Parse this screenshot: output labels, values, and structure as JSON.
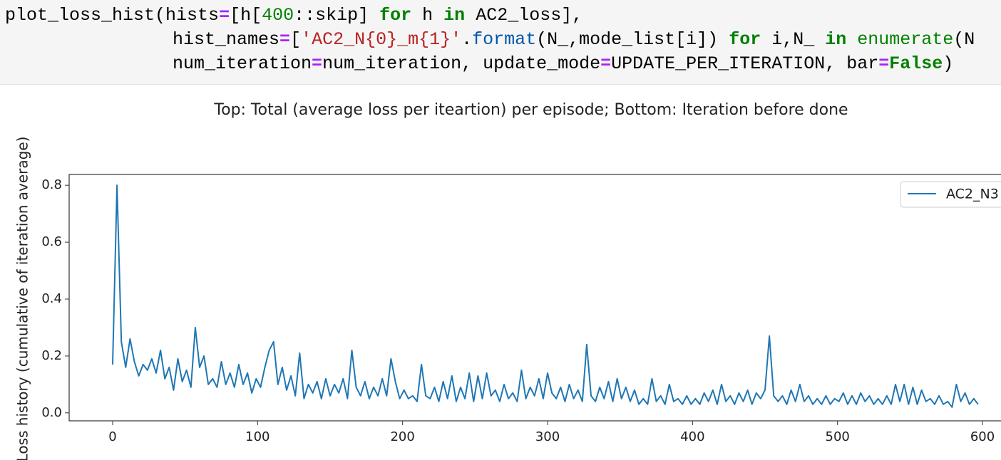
{
  "code": {
    "lines": [
      {
        "tokens": [
          {
            "text": "plot_loss_hist(hists",
            "color": "#000000"
          },
          {
            "text": "=",
            "color": "#aa22ff",
            "bold": true
          },
          {
            "text": "[h[",
            "color": "#000000"
          },
          {
            "text": "400",
            "color": "#008000"
          },
          {
            "text": "::skip] ",
            "color": "#000000"
          },
          {
            "text": "for",
            "color": "#008000",
            "bold": true
          },
          {
            "text": " h ",
            "color": "#000000"
          },
          {
            "text": "in",
            "color": "#008000",
            "bold": true
          },
          {
            "text": " AC2_loss],",
            "color": "#000000"
          }
        ]
      },
      {
        "tokens": [
          {
            "text": "hist_names",
            "color": "#000000"
          },
          {
            "text": "=",
            "color": "#aa22ff",
            "bold": true
          },
          {
            "text": "[",
            "color": "#000000"
          },
          {
            "text": "'AC2_N{0}_m{1}'",
            "color": "#ba2121"
          },
          {
            "text": ".",
            "color": "#000000"
          },
          {
            "text": "format",
            "color": "#0055aa"
          },
          {
            "text": "(N_,mode_list[i]) ",
            "color": "#000000"
          },
          {
            "text": "for",
            "color": "#008000",
            "bold": true
          },
          {
            "text": " i,N_ ",
            "color": "#000000"
          },
          {
            "text": "in",
            "color": "#008000",
            "bold": true
          },
          {
            "text": " ",
            "color": "#000000"
          },
          {
            "text": "enumerate",
            "color": "#008000"
          },
          {
            "text": "(N",
            "color": "#000000"
          }
        ]
      },
      {
        "tokens": [
          {
            "text": "num_iteration",
            "color": "#000000"
          },
          {
            "text": "=",
            "color": "#aa22ff",
            "bold": true
          },
          {
            "text": "num_iteration, update_mode",
            "color": "#000000"
          },
          {
            "text": "=",
            "color": "#aa22ff",
            "bold": true
          },
          {
            "text": "UPDATE_PER_ITERATION, bar",
            "color": "#000000"
          },
          {
            "text": "=",
            "color": "#aa22ff",
            "bold": true
          },
          {
            "text": "False",
            "color": "#008000",
            "bold": true
          },
          {
            "text": ")",
            "color": "#000000"
          }
        ]
      }
    ]
  },
  "chart_data": {
    "type": "line",
    "title": "Top: Total (average loss per iteartion) per episode; Bottom: Iteration before done",
    "y_label": "Loss history (cumulative of iteration average)",
    "xlim": [
      -30,
      629
    ],
    "ylim": [
      -0.028,
      0.838
    ],
    "xticks": [
      0,
      100,
      200,
      300,
      400,
      500,
      600
    ],
    "yticks": [
      {
        "value": 0,
        "label": "0.0"
      },
      0.2,
      0.4,
      0.6,
      0.8
    ],
    "legend": "upper right",
    "x": [
      0,
      3,
      6,
      9,
      12,
      15,
      18,
      21,
      24,
      27,
      30,
      33,
      36,
      39,
      42,
      45,
      48,
      51,
      54,
      57,
      60,
      63,
      66,
      69,
      72,
      75,
      78,
      81,
      84,
      87,
      90,
      93,
      96,
      99,
      102,
      105,
      108,
      111,
      114,
      117,
      120,
      123,
      126,
      129,
      132,
      135,
      138,
      141,
      144,
      147,
      150,
      153,
      156,
      159,
      162,
      165,
      168,
      171,
      174,
      177,
      180,
      183,
      186,
      189,
      192,
      195,
      198,
      201,
      204,
      207,
      210,
      213,
      216,
      219,
      222,
      225,
      228,
      231,
      234,
      237,
      240,
      243,
      246,
      249,
      252,
      255,
      258,
      261,
      264,
      267,
      270,
      273,
      276,
      279,
      282,
      285,
      288,
      291,
      294,
      297,
      300,
      303,
      306,
      309,
      312,
      315,
      318,
      321,
      324,
      327,
      330,
      333,
      336,
      339,
      342,
      345,
      348,
      351,
      354,
      357,
      360,
      363,
      366,
      369,
      372,
      375,
      378,
      381,
      384,
      387,
      390,
      393,
      396,
      399,
      402,
      405,
      408,
      411,
      414,
      417,
      420,
      423,
      426,
      429,
      432,
      435,
      438,
      441,
      444,
      447,
      450,
      453,
      456,
      459,
      462,
      465,
      468,
      471,
      474,
      477,
      480,
      483,
      486,
      489,
      492,
      495,
      498,
      501,
      504,
      507,
      510,
      513,
      516,
      519,
      522,
      525,
      528,
      531,
      534,
      537,
      540,
      543,
      546,
      549,
      552,
      555,
      558,
      561,
      564,
      567,
      570,
      573,
      576,
      579,
      582,
      585,
      588,
      591,
      594,
      597
    ],
    "series": [
      {
        "name": "AC2_N3",
        "color": "#1f77b4",
        "values": [
          0.17,
          0.8,
          0.25,
          0.16,
          0.26,
          0.18,
          0.13,
          0.17,
          0.15,
          0.19,
          0.14,
          0.22,
          0.12,
          0.16,
          0.08,
          0.19,
          0.11,
          0.15,
          0.09,
          0.3,
          0.16,
          0.2,
          0.1,
          0.12,
          0.09,
          0.18,
          0.1,
          0.14,
          0.09,
          0.17,
          0.1,
          0.14,
          0.07,
          0.12,
          0.09,
          0.16,
          0.22,
          0.25,
          0.1,
          0.16,
          0.08,
          0.13,
          0.06,
          0.21,
          0.05,
          0.1,
          0.07,
          0.11,
          0.05,
          0.12,
          0.06,
          0.1,
          0.07,
          0.12,
          0.05,
          0.22,
          0.09,
          0.06,
          0.11,
          0.05,
          0.09,
          0.06,
          0.12,
          0.06,
          0.19,
          0.11,
          0.05,
          0.08,
          0.05,
          0.06,
          0.04,
          0.17,
          0.06,
          0.05,
          0.09,
          0.04,
          0.11,
          0.05,
          0.13,
          0.04,
          0.09,
          0.05,
          0.14,
          0.04,
          0.13,
          0.05,
          0.14,
          0.06,
          0.08,
          0.04,
          0.1,
          0.05,
          0.07,
          0.04,
          0.15,
          0.05,
          0.09,
          0.06,
          0.12,
          0.05,
          0.14,
          0.07,
          0.05,
          0.09,
          0.04,
          0.1,
          0.05,
          0.08,
          0.04,
          0.24,
          0.06,
          0.04,
          0.09,
          0.05,
          0.11,
          0.04,
          0.12,
          0.05,
          0.09,
          0.04,
          0.08,
          0.03,
          0.05,
          0.03,
          0.12,
          0.04,
          0.06,
          0.03,
          0.1,
          0.04,
          0.05,
          0.03,
          0.06,
          0.03,
          0.05,
          0.03,
          0.07,
          0.04,
          0.08,
          0.03,
          0.1,
          0.04,
          0.06,
          0.03,
          0.07,
          0.04,
          0.08,
          0.03,
          0.07,
          0.05,
          0.08,
          0.27,
          0.06,
          0.04,
          0.06,
          0.03,
          0.08,
          0.04,
          0.1,
          0.04,
          0.06,
          0.03,
          0.05,
          0.03,
          0.06,
          0.03,
          0.05,
          0.04,
          0.07,
          0.03,
          0.06,
          0.03,
          0.07,
          0.04,
          0.06,
          0.03,
          0.05,
          0.03,
          0.06,
          0.03,
          0.1,
          0.04,
          0.1,
          0.03,
          0.09,
          0.03,
          0.08,
          0.04,
          0.05,
          0.03,
          0.06,
          0.03,
          0.04,
          0.02,
          0.1,
          0.04,
          0.07,
          0.03,
          0.05,
          0.03
        ]
      }
    ]
  }
}
